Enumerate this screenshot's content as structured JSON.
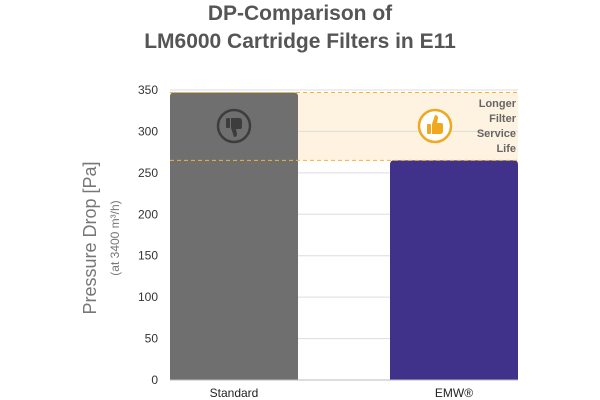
{
  "title_line1": "DP-Comparison of",
  "title_line2": "LM6000 Cartridge Filters in E11",
  "chart_data": {
    "type": "bar",
    "categories": [
      "Standard",
      "EMW®"
    ],
    "values": [
      347,
      265
    ],
    "colors": [
      "#6f6f6f",
      "#40318a"
    ],
    "ylabel": "Pressure Drop [Pa]",
    "ylabel_sub": "(at 3400 m³/h)",
    "ylim": [
      0,
      350
    ],
    "yticks": [
      0,
      50,
      100,
      150,
      200,
      250,
      300,
      350
    ],
    "grid": true,
    "highlight_band": {
      "from": 265,
      "to": 347,
      "color": "#fdf3e0",
      "line_color": "#f0b53a"
    },
    "thumbs_down_icon": "thumbs-down-icon",
    "thumbs_up_icon": "thumbs-up-icon",
    "annotation_lines": [
      "Longer",
      "Filter",
      "Service",
      "Life"
    ],
    "annotation_color": "#666666",
    "accent_color": "#f0a81e"
  }
}
